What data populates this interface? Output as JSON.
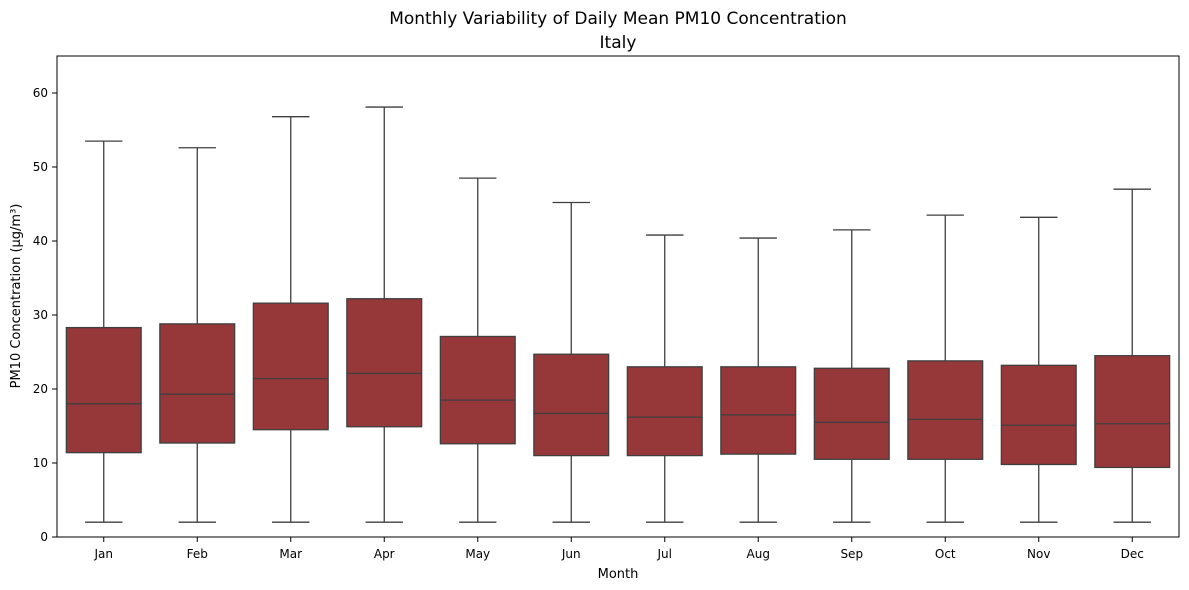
{
  "chart_data": {
    "type": "box",
    "title": "Monthly Variability of Daily Mean PM10 Concentration",
    "subtitle": "Italy",
    "xlabel": "Month",
    "ylabel": "PM10 Concentration (µg/m³)",
    "ylim": [
      0,
      65
    ],
    "yticks": [
      0,
      10,
      20,
      30,
      40,
      50,
      60
    ],
    "grid": false,
    "legend": "none",
    "box_color": "#96373A",
    "line_color": "#3f3f3f",
    "categories": [
      "Jan",
      "Feb",
      "Mar",
      "Apr",
      "May",
      "Jun",
      "Jul",
      "Aug",
      "Sep",
      "Oct",
      "Nov",
      "Dec"
    ],
    "boxes": [
      {
        "whisker_low": 2.0,
        "q1": 11.4,
        "median": 18.0,
        "q3": 28.3,
        "whisker_high": 53.5
      },
      {
        "whisker_low": 2.0,
        "q1": 12.7,
        "median": 19.3,
        "q3": 28.8,
        "whisker_high": 52.6
      },
      {
        "whisker_low": 2.0,
        "q1": 14.5,
        "median": 21.4,
        "q3": 31.6,
        "whisker_high": 56.8
      },
      {
        "whisker_low": 2.0,
        "q1": 14.9,
        "median": 22.1,
        "q3": 32.2,
        "whisker_high": 58.1
      },
      {
        "whisker_low": 2.0,
        "q1": 12.6,
        "median": 18.5,
        "q3": 27.1,
        "whisker_high": 48.5
      },
      {
        "whisker_low": 2.0,
        "q1": 11.0,
        "median": 16.7,
        "q3": 24.7,
        "whisker_high": 45.2
      },
      {
        "whisker_low": 2.0,
        "q1": 11.0,
        "median": 16.2,
        "q3": 23.0,
        "whisker_high": 40.8
      },
      {
        "whisker_low": 2.0,
        "q1": 11.2,
        "median": 16.5,
        "q3": 23.0,
        "whisker_high": 40.4
      },
      {
        "whisker_low": 2.0,
        "q1": 10.5,
        "median": 15.5,
        "q3": 22.8,
        "whisker_high": 41.5
      },
      {
        "whisker_low": 2.0,
        "q1": 10.5,
        "median": 15.9,
        "q3": 23.8,
        "whisker_high": 43.5
      },
      {
        "whisker_low": 2.0,
        "q1": 9.8,
        "median": 15.1,
        "q3": 23.2,
        "whisker_high": 43.2
      },
      {
        "whisker_low": 2.0,
        "q1": 9.4,
        "median": 15.3,
        "q3": 24.5,
        "whisker_high": 47.0
      }
    ]
  }
}
